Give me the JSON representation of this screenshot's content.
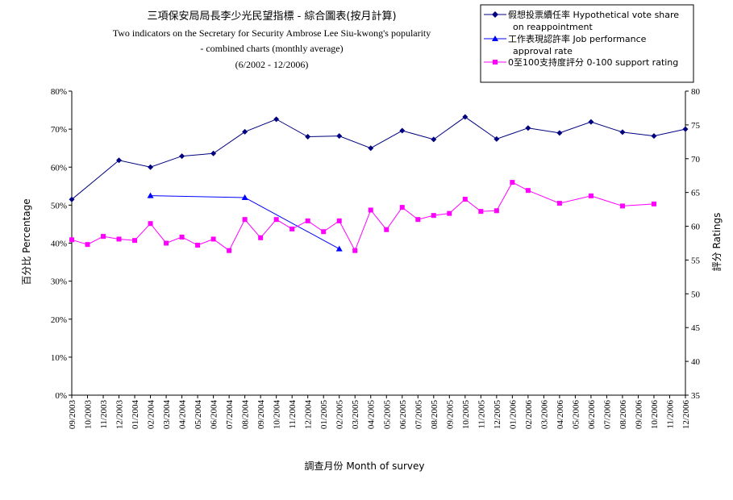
{
  "chart_data": {
    "type": "line",
    "title": "三項保安局局長李少光民望指標 - 綜合圖表(按月計算)",
    "subtitle": [
      "Two indicators on the Secretary for Security Ambrose Lee Siu-kwong's popularity",
      "- combined charts (monthly average)",
      "(6/2002 - 12/2006)"
    ],
    "xlabel": "調查月份  Month of survey",
    "ylabel_left": "百分比  Percentage",
    "ylabel_right": "評分  Ratings",
    "categories": [
      "09/2003",
      "10/2003",
      "11/2003",
      "12/2003",
      "01/2004",
      "02/2004",
      "03/2004",
      "04/2004",
      "05/2004",
      "06/2004",
      "07/2004",
      "08/2004",
      "09/2004",
      "10/2004",
      "11/2004",
      "12/2004",
      "01/2005",
      "02/2005",
      "03/2005",
      "04/2005",
      "05/2005",
      "06/2005",
      "07/2005",
      "08/2005",
      "09/2005",
      "10/2005",
      "11/2005",
      "12/2005",
      "01/2006",
      "02/2006",
      "03/2006",
      "04/2006",
      "05/2006",
      "06/2006",
      "07/2006",
      "08/2006",
      "09/2006",
      "10/2006",
      "11/2006",
      "12/2006"
    ],
    "ylim_left": [
      0,
      80
    ],
    "yticks_left": [
      "0%",
      "10%",
      "20%",
      "30%",
      "40%",
      "50%",
      "60%",
      "70%",
      "80%"
    ],
    "ylim_right": [
      35,
      80
    ],
    "yticks_right": [
      "35",
      "40",
      "45",
      "50",
      "55",
      "60",
      "65",
      "70",
      "75",
      "80"
    ],
    "series": [
      {
        "name": "假想投票續任率 Hypothetical vote share on reappointment",
        "axis": "left",
        "color": "#000080",
        "marker": "diamond",
        "points": [
          [
            0,
            51.5
          ],
          [
            3,
            61.8
          ],
          [
            5,
            60.0
          ],
          [
            7,
            62.9
          ],
          [
            9,
            63.6
          ],
          [
            11,
            69.3
          ],
          [
            13,
            72.6
          ],
          [
            15,
            68.0
          ],
          [
            17,
            68.2
          ],
          [
            19,
            65.0
          ],
          [
            21,
            69.6
          ],
          [
            23,
            67.3
          ],
          [
            25,
            73.2
          ],
          [
            27,
            67.4
          ],
          [
            29,
            70.3
          ],
          [
            31,
            69.0
          ],
          [
            33,
            71.9
          ],
          [
            35,
            69.2
          ],
          [
            37,
            68.2
          ],
          [
            39,
            70.0
          ]
        ]
      },
      {
        "name": "工作表現認許率 Job performance approval rate",
        "axis": "left",
        "color": "#0000ff",
        "marker": "triangle",
        "points": [
          [
            5,
            52.5
          ],
          [
            11,
            52.0
          ],
          [
            17,
            38.5
          ]
        ]
      },
      {
        "name": "0至100支持度評分 0-100 support rating",
        "axis": "right",
        "color": "#ff00ff",
        "marker": "square",
        "points": [
          [
            0,
            58.0
          ],
          [
            1,
            57.3
          ],
          [
            2,
            58.5
          ],
          [
            3,
            58.1
          ],
          [
            4,
            57.9
          ],
          [
            5,
            60.4
          ],
          [
            6,
            57.5
          ],
          [
            7,
            58.4
          ],
          [
            8,
            57.2
          ],
          [
            9,
            58.1
          ],
          [
            10,
            56.4
          ],
          [
            11,
            61.0
          ],
          [
            12,
            58.3
          ],
          [
            13,
            61.0
          ],
          [
            14,
            59.6
          ],
          [
            15,
            60.8
          ],
          [
            16,
            59.2
          ],
          [
            17,
            60.8
          ],
          [
            18,
            56.4
          ],
          [
            19,
            62.4
          ],
          [
            20,
            59.5
          ],
          [
            21,
            62.8
          ],
          [
            22,
            61.0
          ],
          [
            23,
            61.6
          ],
          [
            24,
            61.9
          ],
          [
            25,
            64.0
          ],
          [
            26,
            62.2
          ],
          [
            27,
            62.3
          ],
          [
            28,
            66.5
          ],
          [
            29,
            65.3
          ],
          [
            31,
            63.4
          ],
          [
            33,
            64.5
          ],
          [
            35,
            63.0
          ],
          [
            37,
            63.3
          ]
        ]
      }
    ],
    "legend_labels": [
      [
        "假想投票續任率 Hypothetical vote share",
        "on reappointment"
      ],
      [
        "工作表現認許率 Job performance",
        "approval rate"
      ],
      [
        "0至100支持度評分 0-100 support rating"
      ]
    ],
    "legend_position": "top-right",
    "grid": false
  }
}
